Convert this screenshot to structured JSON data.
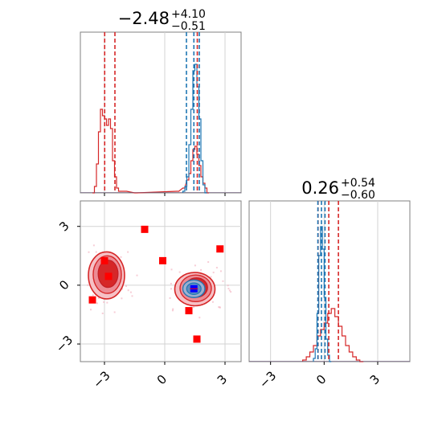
{
  "chart_data": [
    {
      "type": "histogram",
      "panel": "top-left",
      "title": {
        "value": "−2.48",
        "sup": "+4.10",
        "sub": "−0.51"
      },
      "xlim": [
        -4.2,
        3.8
      ],
      "xticks": [
        -3,
        0,
        3
      ],
      "grid": true,
      "series": [
        {
          "color": "#d62728",
          "bins": [
            [
              -3.6,
              0.0
            ],
            [
              -3.5,
              0.04
            ],
            [
              -3.4,
              0.18
            ],
            [
              -3.3,
              0.38
            ],
            [
              -3.2,
              0.52
            ],
            [
              -3.1,
              0.48
            ],
            [
              -3.0,
              0.46
            ],
            [
              -2.9,
              0.42
            ],
            [
              -2.8,
              0.46
            ],
            [
              -2.7,
              0.4
            ],
            [
              -2.6,
              0.2
            ],
            [
              -2.5,
              0.1
            ],
            [
              -2.4,
              0.03
            ],
            [
              -2.3,
              0.01
            ],
            [
              -2.0,
              0.01
            ],
            [
              -1.5,
              0.0
            ],
            [
              0.6,
              0.01
            ],
            [
              0.9,
              0.03
            ],
            [
              1.1,
              0.08
            ],
            [
              1.2,
              0.12
            ],
            [
              1.3,
              0.2
            ],
            [
              1.4,
              0.27
            ],
            [
              1.5,
              0.29
            ],
            [
              1.6,
              0.24
            ],
            [
              1.7,
              0.17
            ],
            [
              1.8,
              0.1
            ],
            [
              1.9,
              0.06
            ],
            [
              2.0,
              0.03
            ],
            [
              2.1,
              0.0
            ]
          ],
          "quantiles": [
            -2.99,
            -2.48,
            1.62
          ]
        },
        {
          "color": "#1f77b4",
          "bins": [
            [
              0.9,
              0.01
            ],
            [
              1.0,
              0.04
            ],
            [
              1.1,
              0.1
            ],
            [
              1.2,
              0.3
            ],
            [
              1.3,
              0.52
            ],
            [
              1.4,
              0.76
            ],
            [
              1.5,
              0.8
            ],
            [
              1.6,
              0.66
            ],
            [
              1.7,
              0.46
            ],
            [
              1.8,
              0.2
            ],
            [
              1.9,
              0.05
            ],
            [
              2.0,
              0.0
            ]
          ],
          "quantiles": [
            1.08,
            1.45,
            1.72
          ]
        }
      ]
    },
    {
      "type": "histogram",
      "panel": "bottom-right",
      "title": {
        "value": "0.26",
        "sup": "+0.54",
        "sub": "−0.60"
      },
      "xlim": [
        -4.2,
        4.8
      ],
      "xticks": [
        -3,
        0,
        3
      ],
      "grid": true,
      "series": [
        {
          "color": "#d62728",
          "bins": [
            [
              -1.2,
              0.01
            ],
            [
              -1.0,
              0.03
            ],
            [
              -0.8,
              0.06
            ],
            [
              -0.6,
              0.1
            ],
            [
              -0.4,
              0.16
            ],
            [
              -0.2,
              0.2
            ],
            [
              0.0,
              0.24
            ],
            [
              0.2,
              0.3
            ],
            [
              0.4,
              0.33
            ],
            [
              0.6,
              0.28
            ],
            [
              0.8,
              0.22
            ],
            [
              1.0,
              0.16
            ],
            [
              1.2,
              0.1
            ],
            [
              1.4,
              0.06
            ],
            [
              1.6,
              0.03
            ],
            [
              1.8,
              0.01
            ],
            [
              2.0,
              0.0
            ]
          ],
          "quantiles": [
            -0.34,
            0.26,
            0.8
          ]
        },
        {
          "color": "#1f77b4",
          "bins": [
            [
              -0.6,
              0.02
            ],
            [
              -0.5,
              0.08
            ],
            [
              -0.4,
              0.3
            ],
            [
              -0.3,
              0.66
            ],
            [
              -0.2,
              0.84
            ],
            [
              -0.1,
              0.7
            ],
            [
              0.0,
              0.4
            ],
            [
              0.1,
              0.14
            ],
            [
              0.2,
              0.04
            ],
            [
              0.3,
              0.0
            ]
          ],
          "quantiles": [
            -0.35,
            -0.15,
            0.05
          ]
        }
      ]
    },
    {
      "type": "scatter",
      "panel": "bottom-left",
      "xlim": [
        -4.2,
        3.8
      ],
      "ylim": [
        -3.9,
        4.3
      ],
      "xticks": [
        -3,
        0,
        3
      ],
      "yticks": [
        -3,
        0,
        3
      ],
      "grid": true,
      "contours": [
        {
          "color": "#d62728",
          "cx": -2.9,
          "cy": 0.5,
          "rx": 0.9,
          "ry": 1.2
        },
        {
          "color": "#d62728",
          "cx": 1.5,
          "cy": -0.2,
          "rx": 1.0,
          "ry": 0.85
        },
        {
          "color": "#1f77b4",
          "cx": 1.45,
          "cy": -0.18,
          "rx": 0.55,
          "ry": 0.45
        }
      ],
      "points": [
        {
          "x": -1.0,
          "y": 2.85
        },
        {
          "x": -3.0,
          "y": 1.25
        },
        {
          "x": -0.1,
          "y": 1.25
        },
        {
          "x": 2.75,
          "y": 1.85
        },
        {
          "x": -2.8,
          "y": 0.45
        },
        {
          "x": -3.6,
          "y": -0.75
        },
        {
          "x": 1.2,
          "y": -1.3
        },
        {
          "x": 1.6,
          "y": -2.75
        }
      ],
      "highlight": {
        "x": 1.45,
        "y": -0.18,
        "color": "#0000ff"
      }
    }
  ]
}
